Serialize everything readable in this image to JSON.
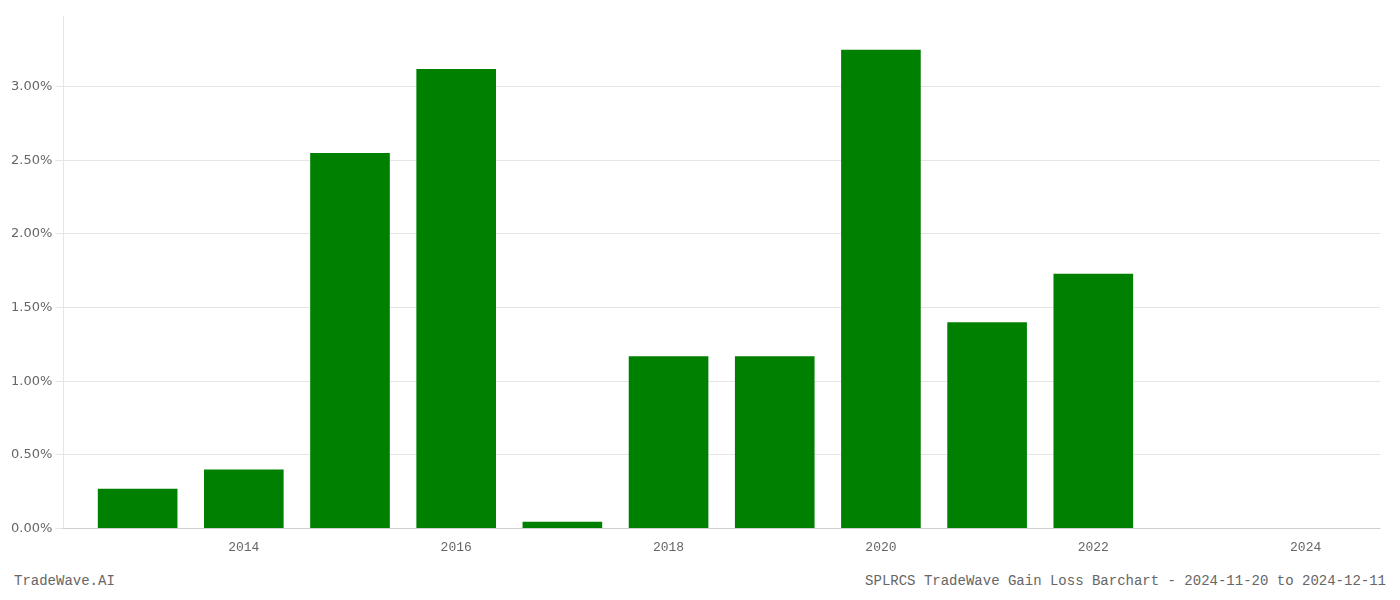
{
  "chart_data": {
    "type": "bar",
    "x": [
      2013,
      2014,
      2015,
      2016,
      2017,
      2018,
      2019,
      2020,
      2021,
      2022,
      2023
    ],
    "values": [
      0.0027,
      0.004,
      0.0255,
      0.0312,
      0.00045,
      0.0117,
      0.0117,
      0.0325,
      0.014,
      0.0173,
      0.0
    ],
    "color": "#008000",
    "xlim": [
      2012.3,
      2024.7
    ],
    "xticks": [
      2014,
      2016,
      2018,
      2020,
      2022,
      2024
    ],
    "ylim": [
      0.0,
      0.0348
    ],
    "yticks": [
      {
        "value": 0.0,
        "label": "0.00%"
      },
      {
        "value": 0.005,
        "label": "0.50%"
      },
      {
        "value": 0.01,
        "label": "1.00%"
      },
      {
        "value": 0.015,
        "label": "1.50%"
      },
      {
        "value": 0.02,
        "label": "2.00%"
      },
      {
        "value": 0.025,
        "label": "2.50%"
      },
      {
        "value": 0.03,
        "label": "3.00%"
      }
    ],
    "grid": true,
    "annotations": [
      "TradeWave.AI",
      "SPLRCS TradeWave Gain Loss Barchart - 2024-11-20 to 2024-12-11"
    ]
  }
}
